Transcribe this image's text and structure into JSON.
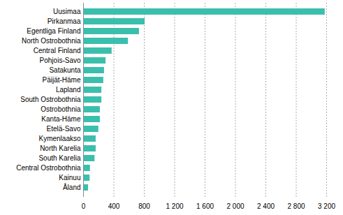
{
  "chart_data": {
    "type": "bar",
    "orientation": "horizontal",
    "categories": [
      "Uusimaa",
      "Pirkanmaa",
      "Egentliga Finland",
      "North Ostrobothnia",
      "Central Finland",
      "Pohjois-Savo",
      "Satakunta",
      "Päijät-Häme",
      "Lapland",
      "South Ostrobothnia",
      "Ostrobothnia",
      "Kanta-Häme",
      "Etelä-Savo",
      "Kymenlaakso",
      "North Karelia",
      "South Karelia",
      "Central Ostrobothnia",
      "Kainuu",
      "Åland"
    ],
    "values": [
      3180,
      810,
      735,
      590,
      375,
      295,
      275,
      265,
      240,
      240,
      220,
      220,
      200,
      165,
      165,
      150,
      90,
      85,
      65
    ],
    "color": "#3bbfad",
    "xlim": [
      0,
      3200
    ],
    "xticks": [
      0,
      400,
      800,
      {
        "value": 1200,
        "label": "1 200"
      },
      {
        "value": 1600,
        "label": "1 600"
      },
      {
        "value": 2000,
        "label": "2 000"
      },
      {
        "value": 2400,
        "label": "2 400"
      },
      {
        "value": 2800,
        "label": "2 800"
      },
      {
        "value": 3200,
        "label": "3 200"
      }
    ],
    "grid": true
  }
}
